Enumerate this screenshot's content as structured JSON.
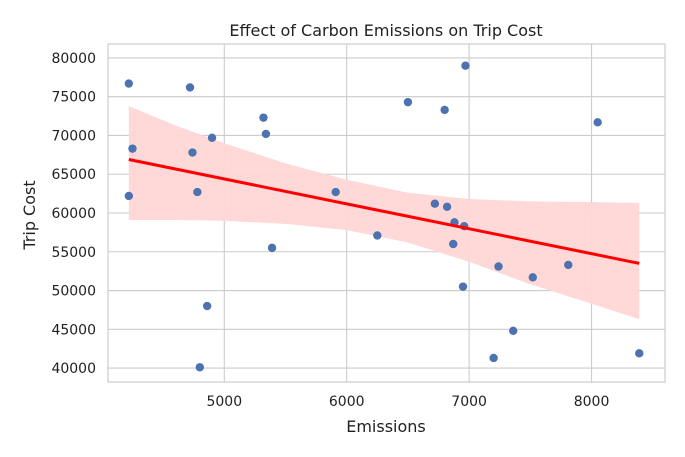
{
  "chart_data": {
    "type": "scatter",
    "title": "Effect of Carbon Emissions on Trip Cost",
    "xlabel": "Emissions",
    "ylabel": "Trip Cost",
    "xlim": [
      4050,
      8600
    ],
    "ylim": [
      38200,
      81800
    ],
    "xticks": [
      5000,
      6000,
      7000,
      8000
    ],
    "yticks": [
      40000,
      45000,
      50000,
      55000,
      60000,
      65000,
      70000,
      75000,
      80000
    ],
    "grid": true,
    "colors": {
      "points": "#4c72b0",
      "fit_line": "#ff0000",
      "confidence_band": "#ffd6d6"
    },
    "points": [
      {
        "x": 4220,
        "y": 76700
      },
      {
        "x": 4250,
        "y": 68300
      },
      {
        "x": 4220,
        "y": 62200
      },
      {
        "x": 4720,
        "y": 76200
      },
      {
        "x": 4740,
        "y": 67800
      },
      {
        "x": 4900,
        "y": 69700
      },
      {
        "x": 4780,
        "y": 62700
      },
      {
        "x": 4860,
        "y": 48000
      },
      {
        "x": 4800,
        "y": 40100
      },
      {
        "x": 5320,
        "y": 72300
      },
      {
        "x": 5340,
        "y": 70200
      },
      {
        "x": 5390,
        "y": 55500
      },
      {
        "x": 5910,
        "y": 62700
      },
      {
        "x": 6250,
        "y": 57100
      },
      {
        "x": 6500,
        "y": 74300
      },
      {
        "x": 6800,
        "y": 73300
      },
      {
        "x": 6720,
        "y": 61200
      },
      {
        "x": 6820,
        "y": 60800
      },
      {
        "x": 6880,
        "y": 58800
      },
      {
        "x": 6960,
        "y": 58300
      },
      {
        "x": 6870,
        "y": 56000
      },
      {
        "x": 6970,
        "y": 79000
      },
      {
        "x": 6950,
        "y": 50500
      },
      {
        "x": 7240,
        "y": 53100
      },
      {
        "x": 7520,
        "y": 51700
      },
      {
        "x": 7810,
        "y": 53300
      },
      {
        "x": 8050,
        "y": 71700
      },
      {
        "x": 7360,
        "y": 44800
      },
      {
        "x": 7200,
        "y": 41300
      },
      {
        "x": 8390,
        "y": 41900
      }
    ],
    "fit_line": {
      "x": [
        4220,
        8390
      ],
      "y": [
        66900,
        53500
      ]
    },
    "confidence_band": {
      "x": [
        4220,
        4600,
        5000,
        5500,
        6000,
        6500,
        7000,
        7500,
        8000,
        8390
      ],
      "upper": [
        73800,
        71300,
        69000,
        66400,
        64300,
        62600,
        61800,
        61500,
        61400,
        61300
      ],
      "lower": [
        59100,
        59100,
        59000,
        58600,
        57800,
        56200,
        53700,
        50800,
        48300,
        46300
      ]
    }
  }
}
